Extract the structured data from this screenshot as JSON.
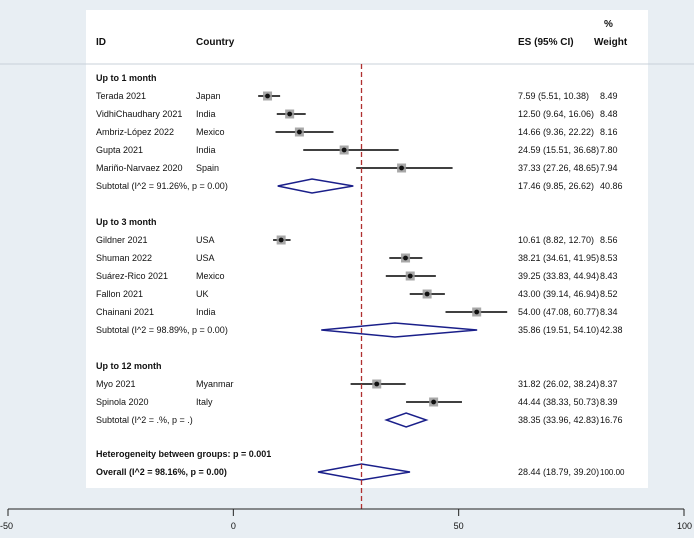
{
  "header": {
    "id": "ID",
    "country": "Country",
    "es": "ES (95% CI)",
    "weight_pct": "%",
    "weight": "Weight"
  },
  "colors": {
    "background": "#e8eef3",
    "panel": "#ffffff",
    "diamond": "#1a1f8a",
    "reference_line": "#b03030",
    "ci_line": "#000000",
    "box": "#999999"
  },
  "chart_data": {
    "type": "forest",
    "xlim": [
      -50,
      100
    ],
    "ticks": [
      "-50",
      "0",
      "50",
      "100"
    ],
    "tick_values": [
      -50,
      0,
      50,
      100
    ],
    "reference_line": 28.44,
    "groups": [
      {
        "label": "Up to 1 month",
        "studies": [
          {
            "id": "Terada 2021",
            "country": "Japan",
            "es": 7.59,
            "lo": 5.51,
            "hi": 10.38,
            "es_text": "7.59 (5.51, 10.38)",
            "weight": "8.49"
          },
          {
            "id": "VidhiChaudhary 2021",
            "country": "India",
            "es": 12.5,
            "lo": 9.64,
            "hi": 16.06,
            "es_text": "12.50 (9.64, 16.06)",
            "weight": "8.48"
          },
          {
            "id": "Ambriz-López 2022",
            "country": "Mexico",
            "es": 14.66,
            "lo": 9.36,
            "hi": 22.22,
            "es_text": "14.66 (9.36, 22.22)",
            "weight": "8.16"
          },
          {
            "id": "Gupta 2021",
            "country": "India",
            "es": 24.59,
            "lo": 15.51,
            "hi": 36.68,
            "es_text": "24.59 (15.51, 36.68)",
            "weight": "7.80"
          },
          {
            "id": "Mariño-Narvaez 2020",
            "country": "Spain",
            "es": 37.33,
            "lo": 27.26,
            "hi": 48.65,
            "es_text": "37.33 (27.26, 48.65)",
            "weight": "7.94"
          }
        ],
        "subtotal": {
          "label": "Subtotal  (I^2 = 91.26%, p = 0.00)",
          "es": 17.46,
          "lo": 9.85,
          "hi": 26.62,
          "es_text": "17.46 (9.85, 26.62)",
          "weight": "40.86"
        }
      },
      {
        "label": "Up to 3 month",
        "studies": [
          {
            "id": "Gildner 2021",
            "country": "USA",
            "es": 10.61,
            "lo": 8.82,
            "hi": 12.7,
            "es_text": "10.61 (8.82, 12.70)",
            "weight": "8.56"
          },
          {
            "id": "Shuman 2022",
            "country": "USA",
            "es": 38.21,
            "lo": 34.61,
            "hi": 41.95,
            "es_text": "38.21 (34.61, 41.95)",
            "weight": "8.53"
          },
          {
            "id": "Suárez-Rico 2021",
            "country": "Mexico",
            "es": 39.25,
            "lo": 33.83,
            "hi": 44.94,
            "es_text": "39.25 (33.83, 44.94)",
            "weight": "8.43"
          },
          {
            "id": "Fallon 2021",
            "country": "UK",
            "es": 43.0,
            "lo": 39.14,
            "hi": 46.94,
            "es_text": "43.00 (39.14, 46.94)",
            "weight": "8.52"
          },
          {
            "id": "Chainani 2021",
            "country": "India",
            "es": 54.0,
            "lo": 47.08,
            "hi": 60.77,
            "es_text": "54.00 (47.08, 60.77)",
            "weight": "8.34"
          }
        ],
        "subtotal": {
          "label": "Subtotal  (I^2 = 98.89%, p = 0.00)",
          "es": 35.86,
          "lo": 19.51,
          "hi": 54.1,
          "es_text": "35.86 (19.51, 54.10)",
          "weight": "42.38"
        }
      },
      {
        "label": "Up to 12 month",
        "studies": [
          {
            "id": "Myo 2021",
            "country": "Myanmar",
            "es": 31.82,
            "lo": 26.02,
            "hi": 38.24,
            "es_text": "31.82 (26.02, 38.24)",
            "weight": "8.37"
          },
          {
            "id": "Spinola 2020",
            "country": "Italy",
            "es": 44.44,
            "lo": 38.33,
            "hi": 50.73,
            "es_text": "44.44 (38.33, 50.73)",
            "weight": "8.39"
          }
        ],
        "subtotal": {
          "label": "Subtotal  (I^2 = .%, p = .)",
          "es": 38.35,
          "lo": 33.96,
          "hi": 42.83,
          "es_text": "38.35 (33.96, 42.83)",
          "weight": "16.76"
        }
      }
    ],
    "heterogeneity": "Heterogeneity between groups: p = 0.001",
    "overall": {
      "label": "Overall  (I^2 = 98.16%, p = 0.00)",
      "es": 28.44,
      "lo": 18.79,
      "hi": 39.2,
      "es_text": "28.44 (18.79, 39.20)",
      "weight": "100.00"
    }
  }
}
